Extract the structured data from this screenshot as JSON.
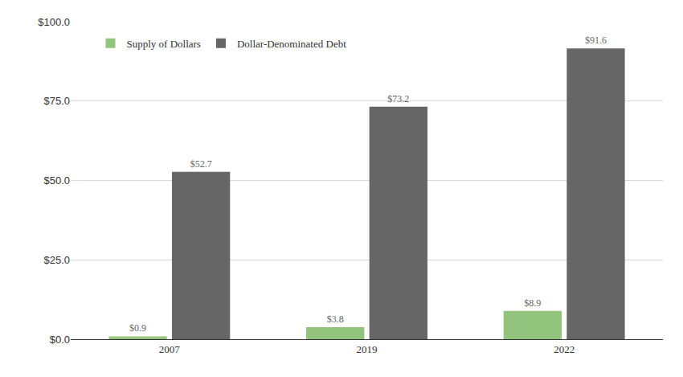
{
  "chart_data": {
    "type": "bar",
    "categories": [
      "2007",
      "2019",
      "2022"
    ],
    "series": [
      {
        "name": "Supply of Dollars",
        "color": "#93c47d",
        "values": [
          0.9,
          3.8,
          8.9
        ],
        "value_labels": [
          "$0.9",
          "$3.8",
          "$8.9"
        ]
      },
      {
        "name": "Dollar-Denominated Debt",
        "color": "#666666",
        "values": [
          52.7,
          73.2,
          91.6
        ],
        "value_labels": [
          "$52.7",
          "$73.2",
          "$91.6"
        ]
      }
    ],
    "ylim": [
      0,
      100
    ],
    "yticks": [
      {
        "value": 0,
        "label": "$0.0"
      },
      {
        "value": 25,
        "label": "$25.0"
      },
      {
        "value": 50,
        "label": "$50.0"
      },
      {
        "value": 75,
        "label": "$75.0"
      },
      {
        "value": 100,
        "label": "$100.0"
      }
    ],
    "grid": true,
    "legend": "top left",
    "data_labels": true
  }
}
